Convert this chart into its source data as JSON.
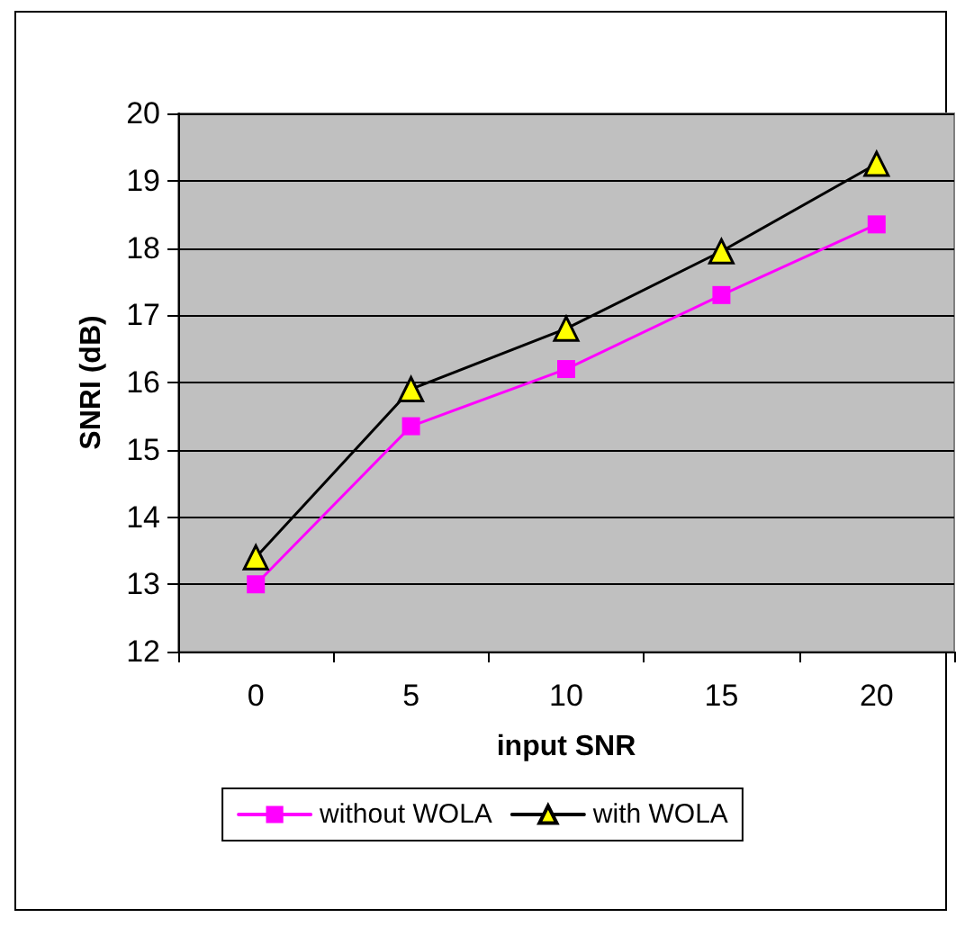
{
  "chart_data": {
    "type": "line",
    "xlabel": "input SNR",
    "ylabel": "SNRI (dB)",
    "categories": [
      "0",
      "5",
      "10",
      "15",
      "20"
    ],
    "series": [
      {
        "name": "without WOLA",
        "color": "#ff00ff",
        "marker": "square",
        "values": [
          13.0,
          15.35,
          16.2,
          17.3,
          18.35
        ]
      },
      {
        "name": "with WOLA",
        "color": "#000000",
        "marker": "triangle",
        "values": [
          13.4,
          15.9,
          16.8,
          17.95,
          19.25
        ]
      }
    ],
    "ylim": [
      12,
      20
    ],
    "yticks": [
      12,
      13,
      14,
      15,
      16,
      17,
      18,
      19,
      20
    ],
    "grid": "y",
    "legend": "bottom"
  }
}
